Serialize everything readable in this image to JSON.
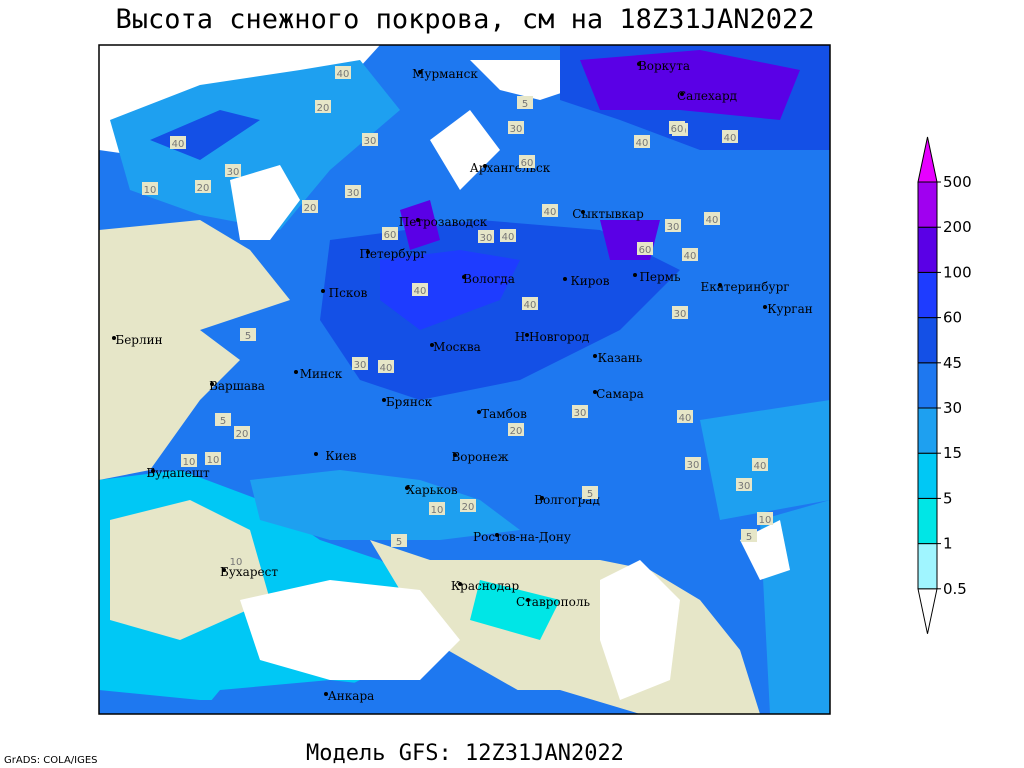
{
  "header": {
    "title": "Высота снежного покрова, см на 18Z31JAN2022"
  },
  "footer": {
    "model": "Модель GFS: 12Z31JAN2022",
    "credit": "GrADS: COLA/IGES"
  },
  "cities": [
    "Мурманск",
    "Воркута",
    "Салехард",
    "Архангельск",
    "Сыктывкар",
    "Петрозаводск",
    "Петербург",
    "Вологда",
    "Киров",
    "Пермь",
    "Екатеринбург",
    "Курган",
    "Псков",
    "Берлин",
    "Москва",
    "Н.Новгород",
    "Казань",
    "Минск",
    "Варшава",
    "Брянск",
    "Самара",
    "Тамбов",
    "Киев",
    "Воронеж",
    "Будапешт",
    "Харьков",
    "Волгоград",
    "Ростов-на-Дону",
    "Бухарест",
    "Краснодар",
    "Ставрополь",
    "Анкара"
  ],
  "contour_labels": [
    40,
    20,
    30,
    40,
    30,
    20,
    10,
    30,
    20,
    30,
    40,
    60,
    40,
    5,
    60,
    40,
    30,
    40,
    60,
    60,
    30,
    40,
    40,
    30,
    40,
    30,
    40,
    40,
    30,
    20,
    5,
    10,
    20,
    10,
    5,
    5,
    10,
    20,
    30,
    30,
    10,
    5,
    5,
    40,
    10,
    60,
    40
  ],
  "colorbar": {
    "levels": [
      0.5,
      1,
      5,
      15,
      30,
      45,
      60,
      100,
      200,
      500
    ],
    "colors": [
      "#ffffff",
      "#a0f5ff",
      "#00e6e6",
      "#00c8f5",
      "#1ea0f0",
      "#1e78f0",
      "#1450e6",
      "#1e3cff",
      "#5a00e6",
      "#a000f0",
      "#e600ff"
    ]
  }
}
